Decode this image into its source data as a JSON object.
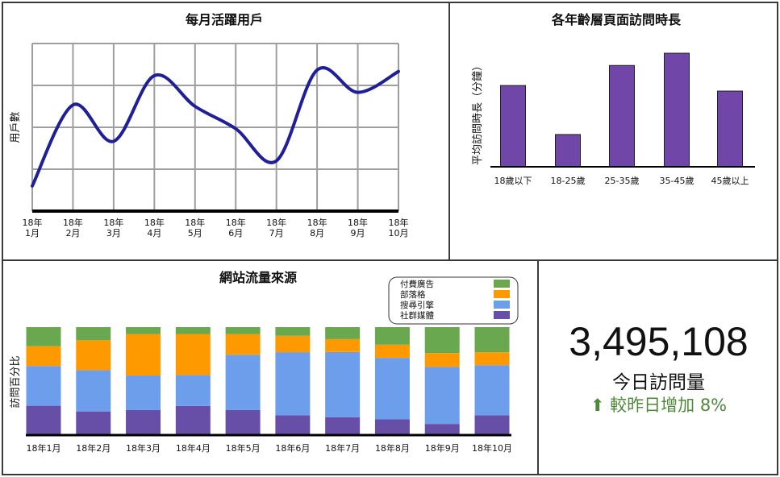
{
  "colors": {
    "line": "#1f1f9a",
    "bar": "#7046a8",
    "paid_ads": "#6aa84f",
    "blogs": "#ff9900",
    "search": "#6d9eeb",
    "social": "#674ea7",
    "grid": "#9e9e9e",
    "change": "#4e8a3a"
  },
  "chart_data": [
    {
      "id": "mau",
      "type": "line",
      "title": "每月活躍用戶",
      "ylabel": "用戶數",
      "xlabel": "",
      "categories": [
        "18年\n1月",
        "18年\n2月",
        "18年\n3月",
        "18年\n4月",
        "18年\n5月",
        "18年\n6月",
        "18年\n7月",
        "18年\n8月",
        "18年\n9月",
        "18年\n10月"
      ],
      "series": [
        {
          "values": [
            18,
            76,
            50,
            97,
            75,
            59,
            36,
            101,
            85,
            100
          ]
        }
      ],
      "ylim": [
        0,
        120
      ],
      "grid": true,
      "smooth": true
    },
    {
      "id": "age_time",
      "type": "bar",
      "title": "各年齡層頁面訪問時長",
      "ylabel": "平均訪問時長（分鐘）",
      "xlabel": "",
      "categories": [
        "18歲以下",
        "18-25歲",
        "25-35歲",
        "35-45歲",
        "45歲以上"
      ],
      "values": [
        7.3,
        2.9,
        9.1,
        10.2,
        6.8
      ],
      "ylim": [
        0,
        11
      ]
    },
    {
      "id": "traffic",
      "type": "bar",
      "stacked": true,
      "title": "網站流量來源",
      "ylabel": "訪問百分比",
      "xlabel": "",
      "categories": [
        "18年1月",
        "18年2月",
        "18年3月",
        "18年4月",
        "18年5月",
        "18年6月",
        "18年7月",
        "18年8月",
        "18年9月",
        "18年10月"
      ],
      "series": [
        {
          "name": "社群媒體",
          "values": [
            33,
            26,
            28,
            33,
            28,
            22,
            20,
            17,
            12,
            22
          ]
        },
        {
          "name": "搜尋引擎",
          "values": [
            46,
            47,
            40,
            36,
            64,
            73,
            76,
            70,
            66,
            58
          ]
        },
        {
          "name": "部落格",
          "values": [
            23,
            34,
            48,
            48,
            24,
            19,
            15,
            15,
            16,
            15
          ]
        },
        {
          "name": "付費廣告",
          "values": [
            22,
            15,
            8,
            8,
            8,
            10,
            14,
            20,
            30,
            29
          ]
        }
      ],
      "legend": {
        "position": "top-right",
        "entries": [
          "付費廣告",
          "部落格",
          "搜尋引擎",
          "社群媒體"
        ]
      }
    }
  ],
  "kpi": {
    "value": "3,495,108",
    "label": "今日訪問量",
    "change_icon": "arrow-up-icon",
    "change_text": "較昨日增加 8%"
  }
}
